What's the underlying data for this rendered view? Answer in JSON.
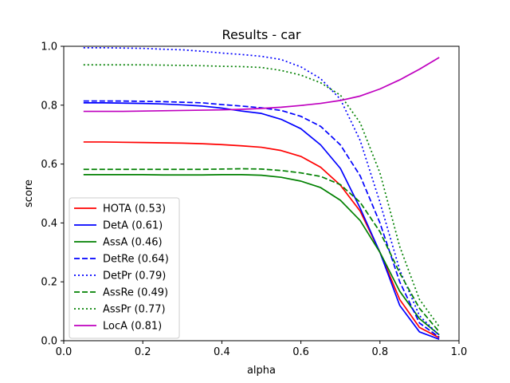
{
  "chart_data": {
    "type": "line",
    "title": "Results - car",
    "xlabel": "alpha",
    "ylabel": "score",
    "xlim": [
      0.0,
      1.0
    ],
    "ylim": [
      0.0,
      1.0
    ],
    "xticks": [
      0.0,
      0.2,
      0.4,
      0.6,
      0.8,
      1.0
    ],
    "yticks": [
      0.0,
      0.2,
      0.4,
      0.6,
      0.8,
      1.0
    ],
    "xtick_labels": [
      "0.0",
      "0.2",
      "0.4",
      "0.6",
      "0.8",
      "1.0"
    ],
    "ytick_labels": [
      "0.0",
      "0.2",
      "0.4",
      "0.6",
      "0.8",
      "1.0"
    ],
    "grid": false,
    "legend_position": "lower-left",
    "x": [
      0.05,
      0.1,
      0.15,
      0.2,
      0.25,
      0.3,
      0.35,
      0.4,
      0.45,
      0.5,
      0.55,
      0.6,
      0.65,
      0.7,
      0.75,
      0.8,
      0.85,
      0.9,
      0.95
    ],
    "series": [
      {
        "name": "HOTA (0.53)",
        "color": "#ff0000",
        "dash": "solid",
        "values": [
          0.675,
          0.675,
          0.674,
          0.673,
          0.672,
          0.671,
          0.669,
          0.666,
          0.662,
          0.657,
          0.646,
          0.626,
          0.589,
          0.528,
          0.44,
          0.3,
          0.14,
          0.045,
          0.01
        ]
      },
      {
        "name": "DetA (0.61)",
        "color": "#0000ff",
        "dash": "solid",
        "values": [
          0.808,
          0.808,
          0.807,
          0.806,
          0.804,
          0.801,
          0.797,
          0.79,
          0.78,
          0.772,
          0.752,
          0.72,
          0.665,
          0.585,
          0.45,
          0.3,
          0.12,
          0.03,
          0.005
        ]
      },
      {
        "name": "AssA (0.46)",
        "color": "#008000",
        "dash": "solid",
        "values": [
          0.564,
          0.564,
          0.564,
          0.564,
          0.563,
          0.563,
          0.563,
          0.564,
          0.564,
          0.562,
          0.555,
          0.542,
          0.52,
          0.477,
          0.408,
          0.3,
          0.168,
          0.075,
          0.02
        ]
      },
      {
        "name": "DetRe (0.64)",
        "color": "#0000ff",
        "dash": "dashed",
        "values": [
          0.814,
          0.814,
          0.814,
          0.813,
          0.812,
          0.81,
          0.808,
          0.802,
          0.797,
          0.791,
          0.782,
          0.762,
          0.728,
          0.665,
          0.56,
          0.4,
          0.2,
          0.06,
          0.012
        ]
      },
      {
        "name": "DetPr (0.79)",
        "color": "#0000ff",
        "dash": "dotted",
        "values": [
          0.995,
          0.995,
          0.994,
          0.993,
          0.99,
          0.988,
          0.983,
          0.977,
          0.972,
          0.966,
          0.955,
          0.93,
          0.89,
          0.82,
          0.68,
          0.47,
          0.24,
          0.085,
          0.018
        ]
      },
      {
        "name": "AssRe (0.49)",
        "color": "#008000",
        "dash": "dashed",
        "values": [
          0.582,
          0.582,
          0.582,
          0.582,
          0.582,
          0.582,
          0.582,
          0.583,
          0.584,
          0.583,
          0.578,
          0.57,
          0.558,
          0.53,
          0.47,
          0.37,
          0.23,
          0.11,
          0.03
        ]
      },
      {
        "name": "AssPr (0.77)",
        "color": "#008000",
        "dash": "dotted",
        "values": [
          0.937,
          0.937,
          0.937,
          0.937,
          0.936,
          0.935,
          0.934,
          0.932,
          0.931,
          0.928,
          0.918,
          0.902,
          0.876,
          0.834,
          0.74,
          0.57,
          0.32,
          0.14,
          0.048
        ]
      },
      {
        "name": "LocA (0.81)",
        "color": "#bf00bf",
        "dash": "solid",
        "values": [
          0.779,
          0.779,
          0.779,
          0.78,
          0.781,
          0.782,
          0.783,
          0.784,
          0.786,
          0.789,
          0.793,
          0.799,
          0.806,
          0.816,
          0.831,
          0.855,
          0.886,
          0.922,
          0.962
        ]
      }
    ]
  }
}
